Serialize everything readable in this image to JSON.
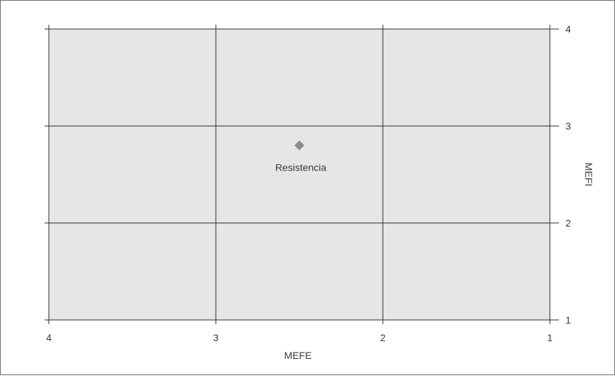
{
  "chart_data": {
    "type": "scatter",
    "title": "",
    "xlabel": "MEFE",
    "ylabel": "MEFI",
    "xlim": [
      4,
      1
    ],
    "ylim": [
      1,
      4
    ],
    "x_reversed": true,
    "x_ticks": [
      4,
      3,
      2,
      1
    ],
    "y_ticks": [
      1,
      2,
      3,
      4
    ],
    "y_axis_side": "right",
    "grid": true,
    "plot_background": "#e5e6e8",
    "grid_color": "#2b2b2b",
    "marker_color": "#8c8c8c",
    "marker_shape": "diamond",
    "points": [
      {
        "x": 2.5,
        "y": 2.8,
        "label": "Resistencia"
      }
    ]
  }
}
